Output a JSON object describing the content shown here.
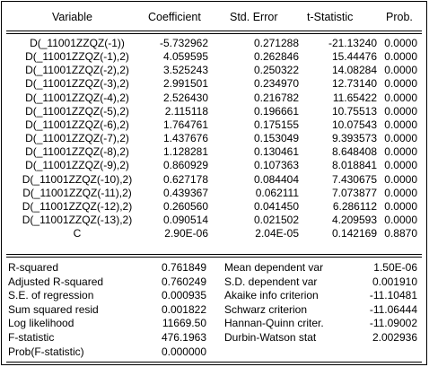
{
  "header": {
    "variable": "Variable",
    "coefficient": "Coefficient",
    "std_error": "Std. Error",
    "t_statistic": "t-Statistic",
    "prob": "Prob."
  },
  "rows": [
    {
      "variable": "D(_11001ZZQZ(-1))",
      "coefficient": "-5.732962",
      "std_error": "0.271288",
      "t_statistic": "-21.13240",
      "prob": "0.0000"
    },
    {
      "variable": "D(_11001ZZQZ(-1),2)",
      "coefficient": "4.059595",
      "std_error": "0.262846",
      "t_statistic": "15.44476",
      "prob": "0.0000"
    },
    {
      "variable": "D(_11001ZZQZ(-2),2)",
      "coefficient": "3.525243",
      "std_error": "0.250322",
      "t_statistic": "14.08284",
      "prob": "0.0000"
    },
    {
      "variable": "D(_11001ZZQZ(-3),2)",
      "coefficient": "2.991501",
      "std_error": "0.234970",
      "t_statistic": "12.73140",
      "prob": "0.0000"
    },
    {
      "variable": "D(_11001ZZQZ(-4),2)",
      "coefficient": "2.526430",
      "std_error": "0.216782",
      "t_statistic": "11.65422",
      "prob": "0.0000"
    },
    {
      "variable": "D(_11001ZZQZ(-5),2)",
      "coefficient": "2.115118",
      "std_error": "0.196661",
      "t_statistic": "10.75513",
      "prob": "0.0000"
    },
    {
      "variable": "D(_11001ZZQZ(-6),2)",
      "coefficient": "1.764761",
      "std_error": "0.175155",
      "t_statistic": "10.07543",
      "prob": "0.0000"
    },
    {
      "variable": "D(_11001ZZQZ(-7),2)",
      "coefficient": "1.437676",
      "std_error": "0.153049",
      "t_statistic": "9.393573",
      "prob": "0.0000"
    },
    {
      "variable": "D(_11001ZZQZ(-8),2)",
      "coefficient": "1.128281",
      "std_error": "0.130461",
      "t_statistic": "8.648408",
      "prob": "0.0000"
    },
    {
      "variable": "D(_11001ZZQZ(-9),2)",
      "coefficient": "0.860929",
      "std_error": "0.107363",
      "t_statistic": "8.018841",
      "prob": "0.0000"
    },
    {
      "variable": "D(_11001ZZQZ(-10),2)",
      "coefficient": "0.627178",
      "std_error": "0.084404",
      "t_statistic": "7.430675",
      "prob": "0.0000"
    },
    {
      "variable": "D(_11001ZZQZ(-11),2)",
      "coefficient": "0.439367",
      "std_error": "0.062111",
      "t_statistic": "7.073877",
      "prob": "0.0000"
    },
    {
      "variable": "D(_11001ZZQZ(-12),2)",
      "coefficient": "0.260560",
      "std_error": "0.041450",
      "t_statistic": "6.286112",
      "prob": "0.0000"
    },
    {
      "variable": "D(_11001ZZQZ(-13),2)",
      "coefficient": "0.090514",
      "std_error": "0.021502",
      "t_statistic": "4.209593",
      "prob": "0.0000"
    },
    {
      "variable": "C",
      "coefficient": "2.90E-06",
      "std_error": "2.04E-05",
      "t_statistic": "0.142169",
      "prob": "0.8870"
    }
  ],
  "stats": [
    {
      "label": "R-squared",
      "value": "0.761849",
      "label2": "Mean dependent var",
      "value2": "1.50E-06"
    },
    {
      "label": "Adjusted R-squared",
      "value": "0.760249",
      "label2": "S.D. dependent var",
      "value2": "0.001910"
    },
    {
      "label": "S.E. of regression",
      "value": "0.000935",
      "label2": "Akaike info criterion",
      "value2": "-11.10481"
    },
    {
      "label": "Sum squared resid",
      "value": "0.001822",
      "label2": "Schwarz criterion",
      "value2": "-11.06444"
    },
    {
      "label": "Log likelihood",
      "value": "11669.50",
      "label2": "Hannan-Quinn criter.",
      "value2": "-11.09002"
    },
    {
      "label": "F-statistic",
      "value": "476.1963",
      "label2": "Durbin-Watson stat",
      "value2": "2.002936"
    },
    {
      "label": "Prob(F-statistic)",
      "value": "0.000000",
      "label2": "",
      "value2": ""
    }
  ]
}
